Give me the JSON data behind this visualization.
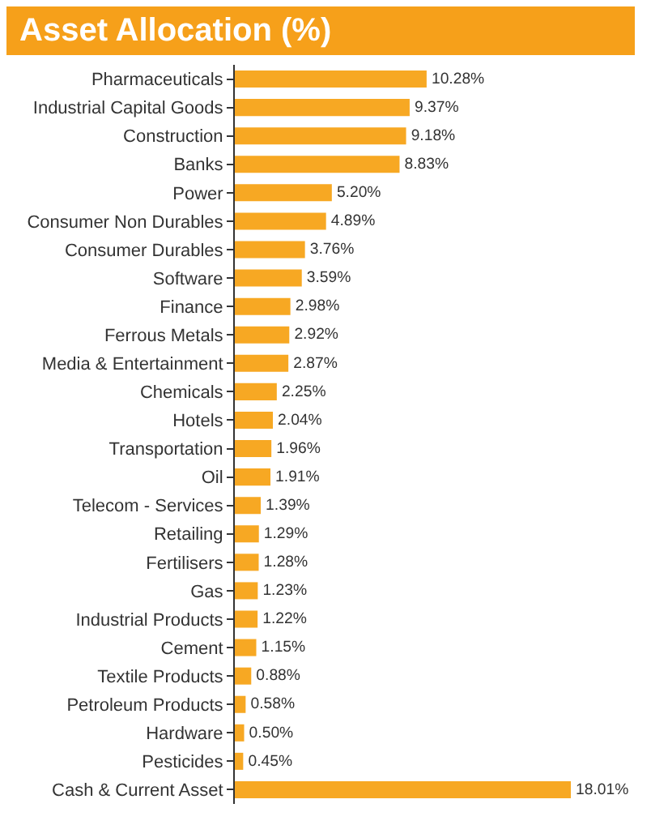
{
  "chart_data": {
    "type": "bar",
    "orientation": "horizontal",
    "title": "Asset Allocation (%)",
    "categories": [
      "Pharmaceuticals",
      "Industrial Capital Goods",
      "Construction",
      "Banks",
      "Power",
      "Consumer Non Durables",
      "Consumer Durables",
      "Software",
      "Finance",
      "Ferrous Metals",
      "Media & Entertainment",
      "Chemicals",
      "Hotels",
      "Transportation",
      "Oil",
      "Telecom - Services",
      "Retailing",
      "Fertilisers",
      "Gas",
      "Industrial Products",
      "Cement",
      "Textile Products",
      "Petroleum Products",
      "Hardware",
      "Pesticides",
      "Cash & Current Asset"
    ],
    "values": [
      10.28,
      9.37,
      9.18,
      8.83,
      5.2,
      4.89,
      3.76,
      3.59,
      2.98,
      2.92,
      2.87,
      2.25,
      2.04,
      1.96,
      1.91,
      1.39,
      1.29,
      1.28,
      1.23,
      1.22,
      1.15,
      0.88,
      0.58,
      0.5,
      0.45,
      18.01
    ],
    "value_labels": [
      "10.28%",
      "9.37%",
      "9.18%",
      "8.83%",
      "5.20%",
      "4.89%",
      "3.76%",
      "3.59%",
      "2.98%",
      "2.92%",
      "2.87%",
      "2.25%",
      "2.04%",
      "1.96%",
      "1.91%",
      "1.39%",
      "1.29%",
      "1.28%",
      "1.23%",
      "1.22%",
      "1.15%",
      "0.88%",
      "0.58%",
      "0.50%",
      "0.45%",
      "18.01%"
    ],
    "color": "#f7a823",
    "tick_labels": "y",
    "grid": false,
    "legend": false
  }
}
